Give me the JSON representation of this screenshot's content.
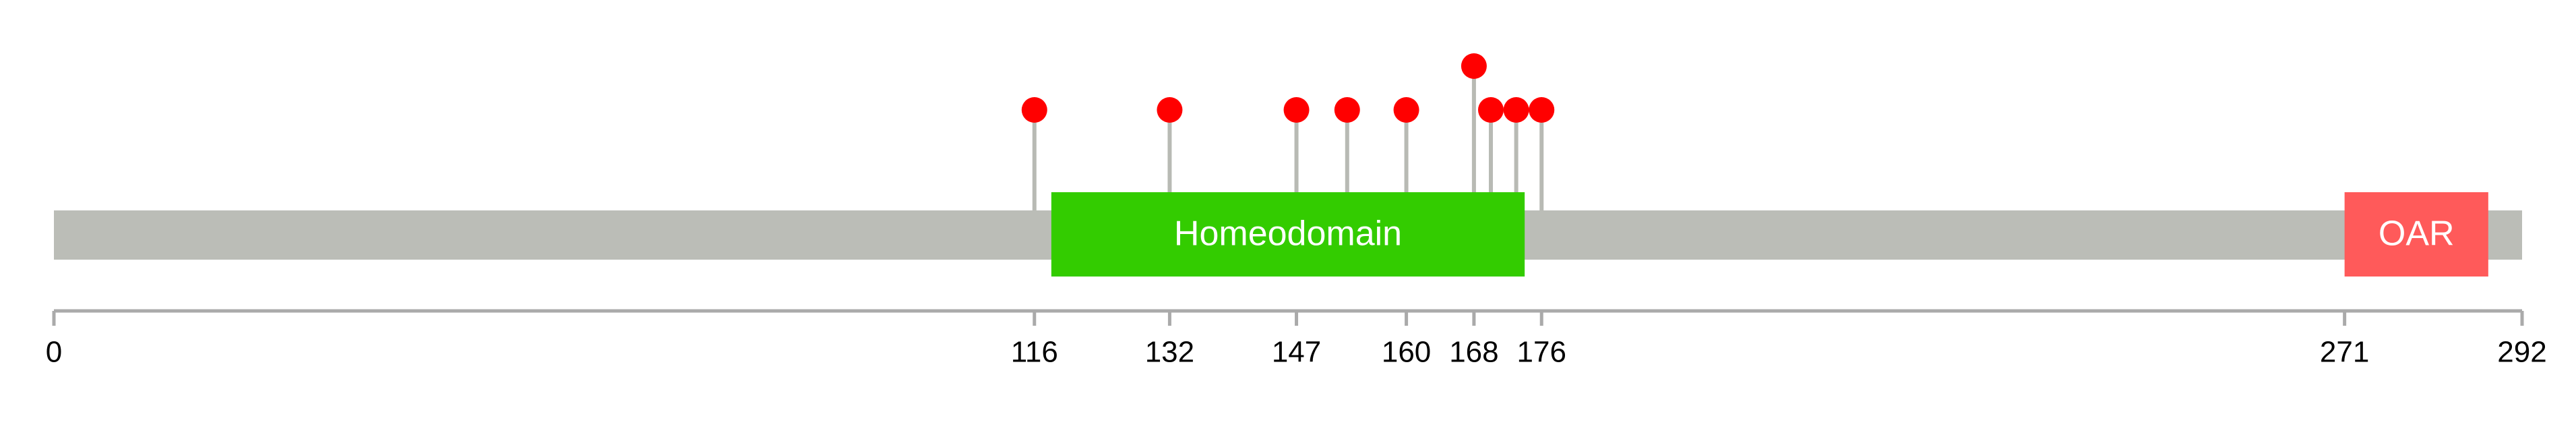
{
  "chart_data": {
    "type": "lollipop",
    "x": [
      116,
      132,
      147,
      153,
      160,
      168,
      170,
      173,
      176
    ],
    "values": [
      1,
      1,
      1,
      1,
      1,
      2,
      1,
      1,
      1
    ],
    "color": "#ff0000",
    "stem_color": "#b8bab4",
    "backbone_color": "#bbbdb7",
    "domains": [
      {
        "name": "Homeodomain",
        "start": 118,
        "end": 174,
        "color": "#33cc00"
      },
      {
        "name": "OAR",
        "start": 271,
        "end": 288,
        "color": "#ff5a5a"
      }
    ],
    "xlim": [
      0,
      292
    ],
    "xticks": [
      0,
      116,
      132,
      147,
      160,
      168,
      176,
      271,
      292
    ]
  }
}
